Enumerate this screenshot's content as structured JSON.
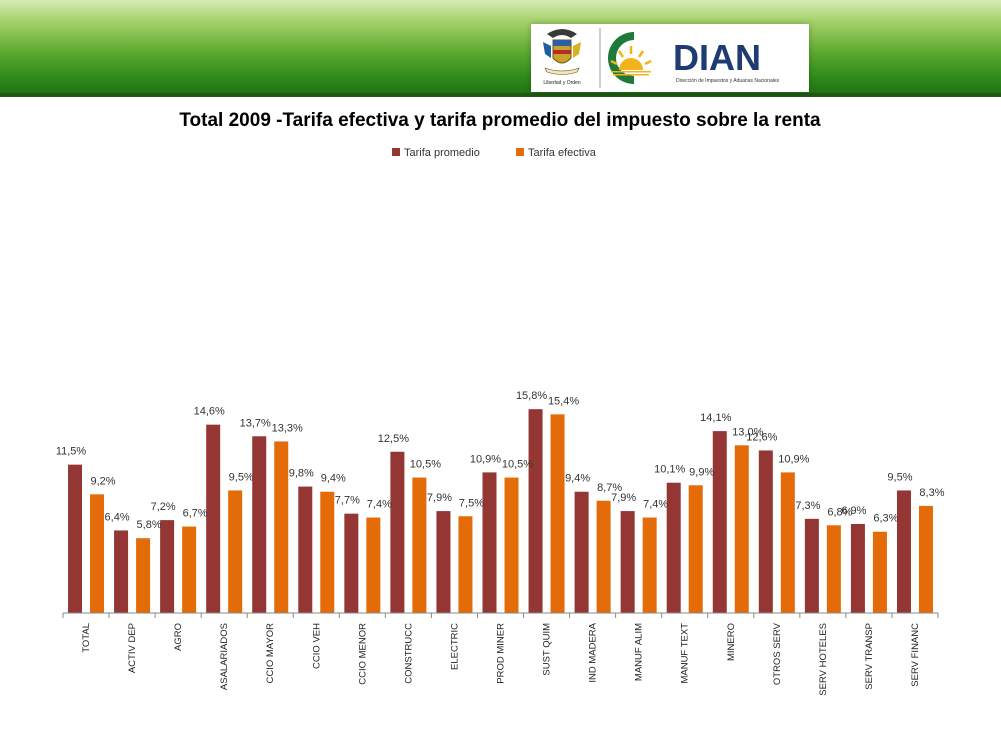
{
  "header": {
    "coat_of_arms_label": "Libertad y Orden",
    "brand": "DIAN",
    "brand_subtitle": "Dirección de Impuestos y Aduanas Nacionales"
  },
  "colors": {
    "promedio": "#943634",
    "efectiva": "#e36c09",
    "header_green": "#2f8a1c",
    "dian_green": "#1e7a3a",
    "dian_text": "#1f3b73"
  },
  "chart_data": {
    "type": "bar",
    "title": "Total 2009 -Tarifa efectiva y tarifa promedio del impuesto sobre la renta",
    "xlabel": "",
    "ylabel": "",
    "ylim": [
      0,
      16.5
    ],
    "grid": false,
    "legend_position": "top",
    "categories": [
      "TOTAL",
      "ACTIV DEP",
      "AGRO",
      "ASALARIADOS",
      "CCIO MAYOR",
      "CCIO VEH",
      "CCIO MENOR",
      "CONSTRUCC",
      "ELECTRIC",
      "PROD MINER",
      "SUST QUIM",
      "IND MADERA",
      "MANUF ALIM",
      "MANUF TEXT",
      "MINERO",
      "OTROS SERV",
      "SERV HOTELES",
      "SERV TRANSP",
      "SERV FINANC"
    ],
    "series": [
      {
        "name": "Tarifa promedio",
        "values": [
          11.5,
          6.4,
          7.2,
          14.6,
          13.7,
          9.8,
          7.7,
          12.5,
          7.9,
          10.9,
          15.8,
          9.4,
          7.9,
          10.1,
          14.1,
          12.6,
          7.3,
          6.9,
          9.5
        ],
        "labels": [
          "11,5%",
          "6,4%",
          "7,2%",
          "14,6%",
          "13,7%",
          "9,8%",
          "7,7%",
          "12,5%",
          "7,9%",
          "10,9%",
          "15,8%",
          "9,4%",
          "7,9%",
          "10,1%",
          "14,1%",
          "12,6%",
          "7,3%",
          "6,9%",
          "9,5%"
        ]
      },
      {
        "name": "Tarifa efectiva",
        "values": [
          9.2,
          5.8,
          6.7,
          9.5,
          13.3,
          9.4,
          7.4,
          10.5,
          7.5,
          10.5,
          15.4,
          8.7,
          7.4,
          9.9,
          13.0,
          10.9,
          6.8,
          6.3,
          8.3
        ],
        "labels": [
          "9,2%",
          "5,8%",
          "6,7%",
          "9,5%",
          "13,3%",
          "9,4%",
          "7,4%",
          "10,5%",
          "7,5%",
          "10,5%",
          "15,4%",
          "8,7%",
          "7,4%",
          "9,9%",
          "13,0%",
          "10,9%",
          "6,8%",
          "6,3%",
          "8,3%"
        ]
      }
    ]
  }
}
